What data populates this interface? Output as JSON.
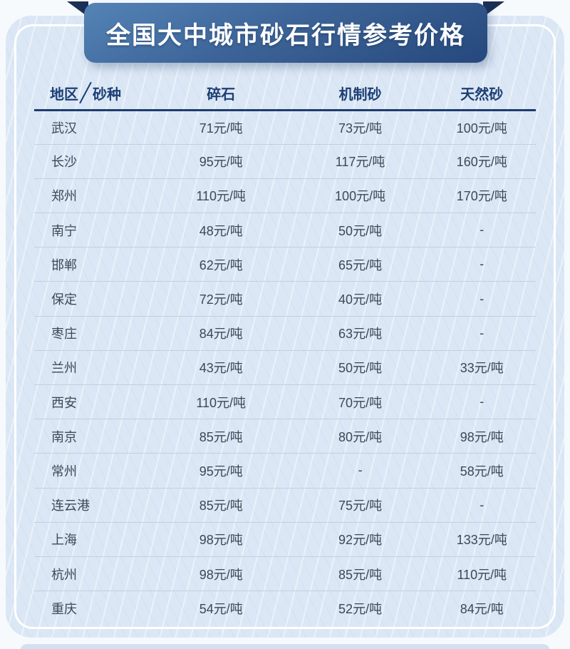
{
  "banner": {
    "title": "全国大中城市砂石行情参考价格"
  },
  "table": {
    "header": {
      "region_label": "地区",
      "sand_type_label": "砂种",
      "columns": [
        "碎石",
        "机制砂",
        "天然砂"
      ]
    },
    "rows": [
      {
        "city": "武汉",
        "crushed_stone": "71元/吨",
        "machine_made_sand": "73元/吨",
        "natural_sand": "100元/吨"
      },
      {
        "city": "长沙",
        "crushed_stone": "95元/吨",
        "machine_made_sand": "117元/吨",
        "natural_sand": "160元/吨"
      },
      {
        "city": "郑州",
        "crushed_stone": "110元/吨",
        "machine_made_sand": "100元/吨",
        "natural_sand": "170元/吨"
      },
      {
        "city": "南宁",
        "crushed_stone": "48元/吨",
        "machine_made_sand": "50元/吨",
        "natural_sand": "-"
      },
      {
        "city": "邯郸",
        "crushed_stone": "62元/吨",
        "machine_made_sand": "65元/吨",
        "natural_sand": "-"
      },
      {
        "city": "保定",
        "crushed_stone": "72元/吨",
        "machine_made_sand": "40元/吨",
        "natural_sand": "-"
      },
      {
        "city": "枣庄",
        "crushed_stone": "84元/吨",
        "machine_made_sand": "63元/吨",
        "natural_sand": "-"
      },
      {
        "city": "兰州",
        "crushed_stone": "43元/吨",
        "machine_made_sand": "50元/吨",
        "natural_sand": "33元/吨"
      },
      {
        "city": "西安",
        "crushed_stone": "110元/吨",
        "machine_made_sand": "70元/吨",
        "natural_sand": "-"
      },
      {
        "city": "南京",
        "crushed_stone": "85元/吨",
        "machine_made_sand": "80元/吨",
        "natural_sand": "98元/吨"
      },
      {
        "city": "常州",
        "crushed_stone": "95元/吨",
        "machine_made_sand": "-",
        "natural_sand": "58元/吨"
      },
      {
        "city": "连云港",
        "crushed_stone": "85元/吨",
        "machine_made_sand": "75元/吨",
        "natural_sand": "-"
      },
      {
        "city": "上海",
        "crushed_stone": "98元/吨",
        "machine_made_sand": "92元/吨",
        "natural_sand": "133元/吨"
      },
      {
        "city": "杭州",
        "crushed_stone": "98元/吨",
        "machine_made_sand": "85元/吨",
        "natural_sand": "110元/吨"
      },
      {
        "city": "重庆",
        "crushed_stone": "54元/吨",
        "machine_made_sand": "52元/吨",
        "natural_sand": "84元/吨"
      }
    ]
  },
  "chart_data": {
    "type": "table",
    "title": "全国大中城市砂石行情参考价格",
    "columns": [
      "地区",
      "碎石",
      "机制砂",
      "天然砂"
    ],
    "unit": "元/吨",
    "categories": [
      "武汉",
      "长沙",
      "郑州",
      "南宁",
      "邯郸",
      "保定",
      "枣庄",
      "兰州",
      "西安",
      "南京",
      "常州",
      "连云港",
      "上海",
      "杭州",
      "重庆"
    ],
    "series": [
      {
        "name": "碎石",
        "values": [
          71,
          95,
          110,
          48,
          62,
          72,
          84,
          43,
          110,
          85,
          95,
          85,
          98,
          98,
          54
        ]
      },
      {
        "name": "机制砂",
        "values": [
          73,
          117,
          100,
          50,
          65,
          40,
          63,
          50,
          70,
          80,
          null,
          75,
          92,
          85,
          52
        ]
      },
      {
        "name": "天然砂",
        "values": [
          100,
          160,
          170,
          null,
          null,
          null,
          null,
          33,
          null,
          98,
          58,
          null,
          133,
          110,
          84
        ]
      }
    ],
    "missing_value_symbol": "-"
  },
  "colors": {
    "banner_gradient_top": "#5584b6",
    "banner_gradient_bottom": "#26487c",
    "ribbon_fold_navy": "#1b3055",
    "card_background": "#dbe7f5",
    "card_inner_border": "#ffffff",
    "page_background": "#f7fafd",
    "header_text_navy": "#1d3f74",
    "header_underline_navy": "#1e3d6e",
    "cell_text": "#3f4755",
    "row_separator": "#c2cfdf",
    "banner_text": "#ffffff"
  }
}
